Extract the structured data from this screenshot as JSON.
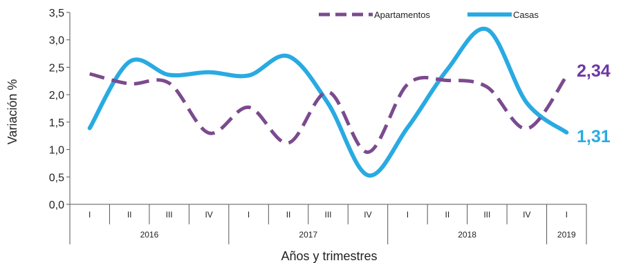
{
  "chart_data": {
    "type": "line",
    "xlabel": "Años y trimestres",
    "ylabel": "Variación %",
    "ylim": [
      0,
      3.5
    ],
    "yticks": [
      "0,0",
      "0,5",
      "1,0",
      "1,5",
      "2,0",
      "2,5",
      "3,0",
      "3,5"
    ],
    "quarters": [
      "I",
      "II",
      "III",
      "IV",
      "I",
      "II",
      "III",
      "IV",
      "I",
      "II",
      "III",
      "IV",
      "I"
    ],
    "years": [
      {
        "label": "2016",
        "span": 4
      },
      {
        "label": "2017",
        "span": 4
      },
      {
        "label": "2018",
        "span": 4
      },
      {
        "label": "2019",
        "span": 1
      }
    ],
    "legend_position": "top-right",
    "series": [
      {
        "name": "Apartamentos",
        "color": "#7B4A8E",
        "style": "dashed",
        "values": [
          2.38,
          2.2,
          2.21,
          1.3,
          1.77,
          1.12,
          2.05,
          0.95,
          2.19,
          2.26,
          2.14,
          1.38,
          2.34
        ]
      },
      {
        "name": "Casas",
        "color": "#29AAE2",
        "style": "solid",
        "values": [
          1.39,
          2.6,
          2.36,
          2.41,
          2.35,
          2.7,
          1.84,
          0.53,
          1.4,
          2.46,
          3.19,
          1.85,
          1.31
        ]
      }
    ],
    "end_labels": [
      {
        "series": "Apartamentos",
        "text": "2,34",
        "color": "#6E36A6"
      },
      {
        "series": "Casas",
        "text": "1,31",
        "color": "#29AAE2"
      }
    ]
  }
}
